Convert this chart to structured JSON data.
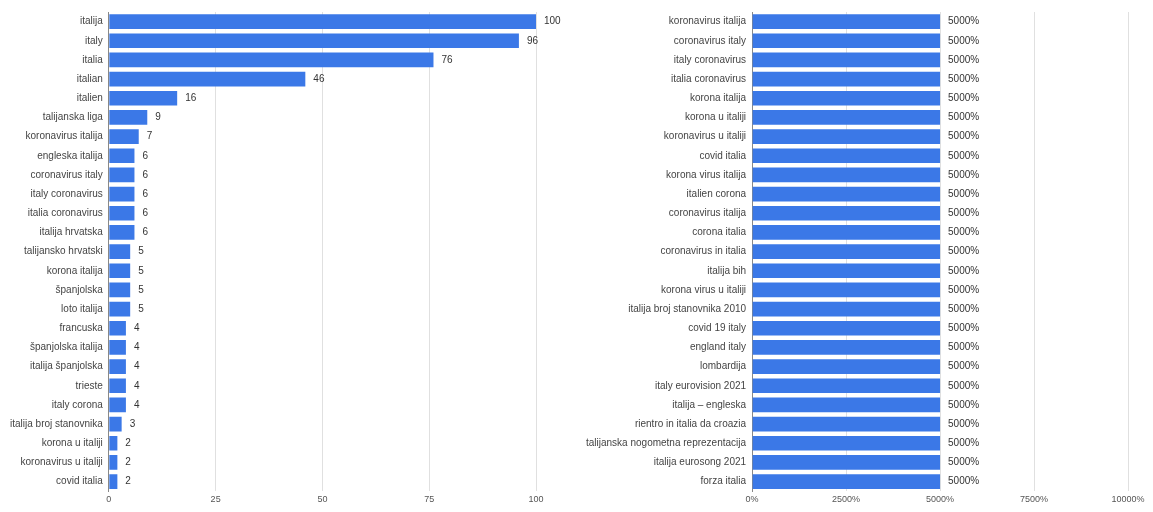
{
  "chart_data": [
    {
      "type": "bar",
      "orientation": "horizontal",
      "categories": [
        "italija",
        "italy",
        "italia",
        "italian",
        "italien",
        "talijanska liga",
        "koronavirus italija",
        "engleska italija",
        "coronavirus italy",
        "italy coronavirus",
        "italia coronavirus",
        "italija hrvatska",
        "talijansko hrvatski",
        "korona italija",
        "španjolska",
        "loto italija",
        "francuska",
        "španjolska italija",
        "italija španjolska",
        "trieste",
        "italy corona",
        "italija broj stanovnika",
        "korona u italiji",
        "koronavirus u italiji",
        "covid italia"
      ],
      "values": [
        100,
        96,
        76,
        46,
        16,
        9,
        7,
        6,
        6,
        6,
        6,
        6,
        5,
        5,
        5,
        5,
        4,
        4,
        4,
        4,
        4,
        3,
        2,
        2,
        2
      ],
      "color": "#3b78e7",
      "xlim": [
        0,
        100
      ],
      "xticks": [
        0,
        25,
        50,
        75,
        100
      ],
      "grid": "x",
      "data_labels": true
    },
    {
      "type": "bar",
      "orientation": "horizontal",
      "categories": [
        "koronavirus italija",
        "coronavirus italy",
        "italy coronavirus",
        "italia coronavirus",
        "korona italija",
        "korona u italiji",
        "koronavirus u italiji",
        "covid italia",
        "korona virus italija",
        "italien corona",
        "coronavirus italija",
        "corona italia",
        "coronavirus in italia",
        "italija bih",
        "korona virus u italiji",
        "italija broj stanovnika 2010",
        "covid 19 italy",
        "england italy",
        "lombardija",
        "italy eurovision 2021",
        "italija – engleska",
        "rientro in italia da croazia",
        "talijanska nogometna reprezentacija",
        "italija eurosong 2021",
        "forza italia"
      ],
      "values": [
        5000,
        5000,
        5000,
        5000,
        5000,
        5000,
        5000,
        5000,
        5000,
        5000,
        5000,
        5000,
        5000,
        5000,
        5000,
        5000,
        5000,
        5000,
        5000,
        5000,
        5000,
        5000,
        5000,
        5000,
        5000
      ],
      "value_labels": [
        "5000%",
        "5000%",
        "5000%",
        "5000%",
        "5000%",
        "5000%",
        "5000%",
        "5000%",
        "5000%",
        "5000%",
        "5000%",
        "5000%",
        "5000%",
        "5000%",
        "5000%",
        "5000%",
        "5000%",
        "5000%",
        "5000%",
        "5000%",
        "5000%",
        "5000%",
        "5000%",
        "5000%",
        "5000%"
      ],
      "color": "#3b78e7",
      "xlim": [
        0,
        10000
      ],
      "xticks": [
        {
          "value": 0,
          "label": "0%"
        },
        {
          "value": 2500,
          "label": "2500%"
        },
        {
          "value": 5000,
          "label": "5000%"
        },
        {
          "value": 7500,
          "label": "7500%"
        },
        {
          "value": 10000,
          "label": "10000%"
        }
      ],
      "grid": "x"
    }
  ]
}
